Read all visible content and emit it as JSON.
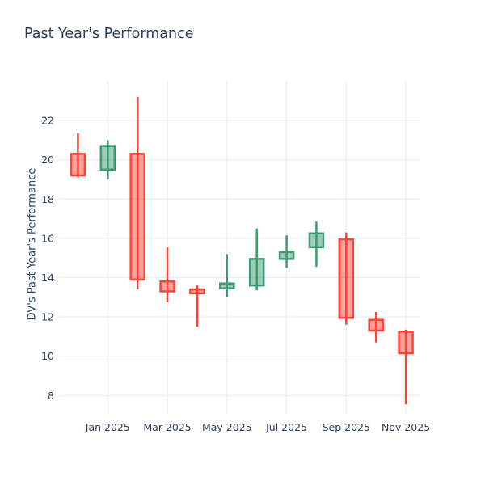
{
  "title": "Past Year's Performance",
  "colors": {
    "background": "#ffffff",
    "text": "#2a3f5f",
    "grid": "#ebf0f8",
    "increasing_line": "#3D9970",
    "increasing_fill": "rgba(61,153,112,0.5)",
    "decreasing_line": "#FF4136",
    "decreasing_fill": "rgba(255,65,54,0.5)"
  },
  "chart_data": {
    "type": "candlestick",
    "title": "Past Year's Performance",
    "xlabel": "",
    "ylabel": "DV's Past Year's Performance",
    "grid": true,
    "legend": false,
    "ylim": [
      7.27,
      24.06
    ],
    "y_ticks": [
      8,
      10,
      12,
      14,
      16,
      18,
      20,
      22
    ],
    "x_ticks": [
      {
        "i": 1,
        "label": "Jan 2025"
      },
      {
        "i": 3,
        "label": "Mar 2025"
      },
      {
        "i": 5,
        "label": "May 2025"
      },
      {
        "i": 7,
        "label": "Jul 2025"
      },
      {
        "i": 9,
        "label": "Sep 2025"
      },
      {
        "i": 11,
        "label": "Nov 2025"
      }
    ],
    "categories": [
      "Dec 2024",
      "Jan 2025",
      "Feb 2025",
      "Mar 2025",
      "Apr 2025",
      "May 2025",
      "Jun 2025",
      "Jul 2025",
      "Aug 2025",
      "Sep 2025",
      "Oct 2025",
      "Nov 2025"
    ],
    "candles": [
      {
        "month": "Dec 2024",
        "open": 20.3,
        "high": 21.35,
        "low": 19.1,
        "close": 19.2
      },
      {
        "month": "Jan 2025",
        "open": 19.5,
        "high": 21.0,
        "low": 19.0,
        "close": 20.7
      },
      {
        "month": "Feb 2025",
        "open": 20.3,
        "high": 23.2,
        "low": 13.4,
        "close": 13.9
      },
      {
        "month": "Mar 2025",
        "open": 13.8,
        "high": 15.55,
        "low": 12.75,
        "close": 13.3
      },
      {
        "month": "Apr 2025",
        "open": 13.4,
        "high": 13.6,
        "low": 11.5,
        "close": 13.2
      },
      {
        "month": "May 2025",
        "open": 13.45,
        "high": 15.2,
        "low": 13.0,
        "close": 13.7
      },
      {
        "month": "Jun 2025",
        "open": 13.6,
        "high": 16.5,
        "low": 13.35,
        "close": 14.95
      },
      {
        "month": "Jul 2025",
        "open": 14.95,
        "high": 16.15,
        "low": 14.5,
        "close": 15.3
      },
      {
        "month": "Aug 2025",
        "open": 15.55,
        "high": 16.85,
        "low": 14.55,
        "close": 16.25
      },
      {
        "month": "Sep 2025",
        "open": 15.95,
        "high": 16.3,
        "low": 11.6,
        "close": 11.95
      },
      {
        "month": "Oct 2025",
        "open": 11.85,
        "high": 12.25,
        "low": 10.7,
        "close": 11.3
      },
      {
        "month": "Nov 2025",
        "open": 11.25,
        "high": 11.35,
        "low": 7.55,
        "close": 10.15
      }
    ]
  }
}
